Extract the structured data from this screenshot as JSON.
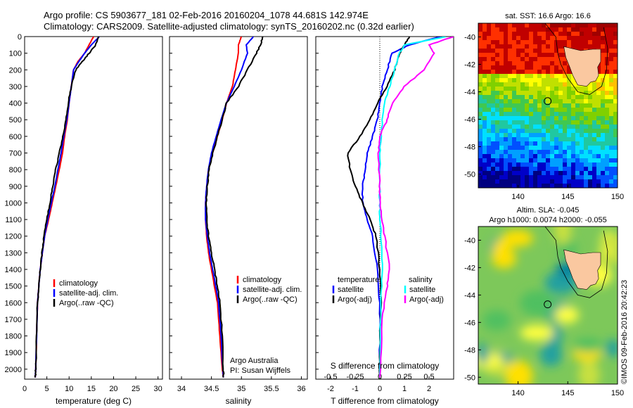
{
  "header": {
    "line1": "Argo profile: CS 5903677_181 02-Feb-2016 20160204_1078 44.681S 142.974E",
    "line2": "Climatology: CARS2009. Satellite-adjusted climatology: synTS_20160202.nc (0.32d earlier)"
  },
  "colors": {
    "climatology": "#ff0000",
    "satellite": "#0000ff",
    "argo": "#000000",
    "sat_salinity": "#00ffff",
    "argo_salinity": "#ff00ff",
    "land": "#fac8a0"
  },
  "chart_data": [
    {
      "type": "line",
      "xlabel": "temperature (deg C)",
      "ylabel": "",
      "xlim": [
        0,
        31
      ],
      "xticks": [
        0,
        5,
        10,
        15,
        20,
        25,
        30
      ],
      "ylim": [
        0,
        2060
      ],
      "yticks": [
        0,
        100,
        200,
        300,
        400,
        500,
        600,
        700,
        800,
        900,
        1000,
        1100,
        1200,
        1300,
        1400,
        1500,
        1600,
        1700,
        1800,
        1900,
        2000
      ],
      "yreversed": true,
      "legend": [
        "climatology",
        "satellite-adj. clim.",
        "Argo(..raw -QC)"
      ],
      "series": [
        {
          "name": "climatology",
          "x": [
            15.5,
            14.5,
            13.5,
            12.0,
            11.0,
            10.5,
            10.0,
            9.6,
            9.0,
            8.5,
            7.8,
            7.0,
            6.2,
            5.4,
            4.5,
            4.0,
            3.5,
            3.2,
            2.9,
            2.7,
            2.5,
            2.4
          ],
          "y": [
            0,
            50,
            100,
            150,
            200,
            300,
            400,
            500,
            600,
            700,
            800,
            900,
            1000,
            1100,
            1200,
            1300,
            1400,
            1500,
            1600,
            1800,
            2000,
            2050
          ]
        },
        {
          "name": "satellite-adj. clim.",
          "x": [
            16.8,
            15.0,
            13.5,
            12.2,
            11.0,
            10.5,
            10.0,
            9.5,
            8.8,
            8.2,
            7.5,
            6.8,
            6.0,
            5.2,
            4.5,
            4.0,
            3.5,
            3.2,
            2.9,
            2.7,
            2.5,
            2.4
          ],
          "y": [
            0,
            50,
            100,
            150,
            200,
            300,
            400,
            500,
            600,
            700,
            800,
            900,
            1000,
            1100,
            1200,
            1300,
            1400,
            1500,
            1600,
            1800,
            2000,
            2050
          ]
        },
        {
          "name": "Argo(..raw -QC)",
          "x": [
            16.6,
            16.0,
            14.5,
            13.0,
            11.5,
            10.5,
            9.8,
            9.3,
            8.6,
            7.8,
            7.0,
            6.3,
            5.7,
            5.0,
            4.4,
            3.9,
            3.5,
            3.2,
            2.9,
            2.7,
            2.5,
            2.4
          ],
          "y": [
            0,
            50,
            100,
            150,
            200,
            300,
            400,
            500,
            600,
            700,
            800,
            900,
            1000,
            1100,
            1200,
            1300,
            1400,
            1500,
            1600,
            1800,
            2000,
            2050
          ]
        }
      ]
    },
    {
      "type": "line",
      "xlabel": "salinity",
      "ylabel": "",
      "xlim": [
        33.8,
        36.1
      ],
      "xticks": [
        34,
        34.5,
        35,
        35.5,
        36
      ],
      "ylim": [
        0,
        2060
      ],
      "yreversed": true,
      "legend": [
        "climatology",
        "satellite-adj. clim.",
        "Argo(..raw -QC)"
      ],
      "annotation": [
        "Argo Australia",
        "PI: Susan Wijffels"
      ],
      "series": [
        {
          "name": "climatology",
          "x": [
            35.0,
            34.95,
            34.95,
            34.9,
            34.85,
            34.75,
            34.68,
            34.6,
            34.52,
            34.45,
            34.42,
            34.4,
            34.4,
            34.42,
            34.45,
            34.5,
            34.55,
            34.6,
            34.64,
            34.68,
            34.7
          ],
          "y": [
            0,
            50,
            100,
            200,
            300,
            400,
            500,
            600,
            700,
            800,
            900,
            1000,
            1100,
            1200,
            1300,
            1400,
            1500,
            1600,
            1800,
            2000,
            2050
          ]
        },
        {
          "name": "satellite-adj. clim.",
          "x": [
            35.2,
            35.08,
            35.1,
            35.0,
            34.88,
            34.75,
            34.66,
            34.58,
            34.5,
            34.45,
            34.42,
            34.4,
            34.4,
            34.43,
            34.47,
            34.52,
            34.57,
            34.62,
            34.66,
            34.69,
            34.7
          ],
          "y": [
            0,
            50,
            100,
            200,
            300,
            400,
            500,
            600,
            700,
            800,
            900,
            1000,
            1100,
            1200,
            1300,
            1400,
            1500,
            1600,
            1800,
            2000,
            2050
          ]
        },
        {
          "name": "Argo(..raw -QC)",
          "x": [
            35.35,
            35.32,
            35.25,
            35.1,
            34.95,
            34.75,
            34.68,
            34.6,
            34.52,
            34.46,
            34.43,
            34.41,
            34.42,
            34.45,
            34.5,
            34.55,
            34.6,
            34.64,
            34.68,
            34.7,
            34.7
          ],
          "y": [
            0,
            50,
            100,
            200,
            300,
            400,
            500,
            600,
            700,
            800,
            900,
            1000,
            1100,
            1200,
            1300,
            1400,
            1500,
            1600,
            1800,
            2000,
            2050
          ]
        }
      ]
    },
    {
      "type": "line",
      "xlabel": "T difference from climatology",
      "xlabel_top": "S difference from climatology",
      "xlim": [
        -2.6,
        3.0
      ],
      "xticks": [
        -2,
        -1,
        0,
        1,
        2
      ],
      "xticks_top": [
        -0.5,
        -0.25,
        0,
        0.25,
        0.5
      ],
      "ylim": [
        0,
        2060
      ],
      "yreversed": true,
      "legend_left_title": "temperature",
      "legend_right_title": "salinity",
      "legend_left": [
        "satellite",
        "Argo(-adj)"
      ],
      "legend_right": [
        "satellite",
        "Argo(-adj)"
      ],
      "series": [
        {
          "name": "T satellite",
          "x": [
            2.5,
            1.2,
            0.5,
            0.3,
            0.1,
            0.0,
            -0.1,
            -0.3,
            -0.5,
            -0.6,
            -0.7,
            -0.7,
            -0.5,
            -0.3,
            -0.1,
            0.0,
            0.0,
            0.0
          ],
          "y": [
            0,
            50,
            100,
            200,
            300,
            400,
            500,
            600,
            700,
            800,
            900,
            1000,
            1100,
            1200,
            1400,
            1600,
            1800,
            2050
          ]
        },
        {
          "name": "T Argo(-adj)",
          "x": [
            1.2,
            1.0,
            0.8,
            0.6,
            0.3,
            -0.1,
            -0.4,
            -0.8,
            -1.3,
            -1.2,
            -1.0,
            -0.7,
            -0.4,
            -0.15,
            0.0,
            0.05,
            0.0,
            0.0
          ],
          "y": [
            0,
            50,
            100,
            200,
            300,
            400,
            500,
            600,
            700,
            800,
            900,
            1000,
            1100,
            1200,
            1400,
            1600,
            1800,
            2050
          ]
        },
        {
          "name": "S satellite",
          "x": [
            2.7,
            1.0,
            0.8,
            0.6,
            0.4,
            0.2,
            0.1,
            0.05,
            0.0,
            0.0,
            0.0,
            0.0,
            0.05,
            0.1,
            0.05,
            0.0
          ],
          "y": [
            0,
            50,
            100,
            200,
            300,
            400,
            500,
            600,
            700,
            900,
            1000,
            1100,
            1200,
            1400,
            1600,
            2050
          ]
        },
        {
          "name": "S Argo(-adj)",
          "x": [
            3.0,
            2.0,
            2.2,
            1.8,
            1.0,
            0.5,
            0.3,
            0.0,
            -0.05,
            0.0,
            0.0,
            0.1,
            0.2,
            0.4,
            0.3,
            0.1,
            0.0
          ],
          "y": [
            0,
            50,
            100,
            200,
            300,
            400,
            500,
            600,
            700,
            900,
            1000,
            1100,
            1200,
            1400,
            1500,
            1700,
            2050
          ]
        }
      ]
    },
    {
      "type": "heatmap",
      "title": "sat. SST: 16.6 Argo: 16.6",
      "xlim": [
        136,
        150
      ],
      "ylim": [
        -51,
        -39
      ],
      "xticks": [
        140,
        145,
        150
      ],
      "yticks": [
        -40,
        -42,
        -44,
        -46,
        -48,
        -50
      ],
      "argo_position": [
        142.974,
        -44.681
      ]
    },
    {
      "type": "heatmap",
      "title": "Altim. SLA: -0.045",
      "subtitle": "Argo h1000: 0.0074 h2000: -0.055",
      "xlim": [
        136,
        150
      ],
      "ylim": [
        -50.5,
        -39
      ],
      "xticks": [
        140,
        145,
        150
      ],
      "yticks": [
        -40,
        -42,
        -44,
        -46,
        -48,
        -50
      ],
      "argo_position": [
        142.974,
        -44.681
      ]
    }
  ],
  "credit": "©IMOS 09-Feb-2016 20:42:23"
}
